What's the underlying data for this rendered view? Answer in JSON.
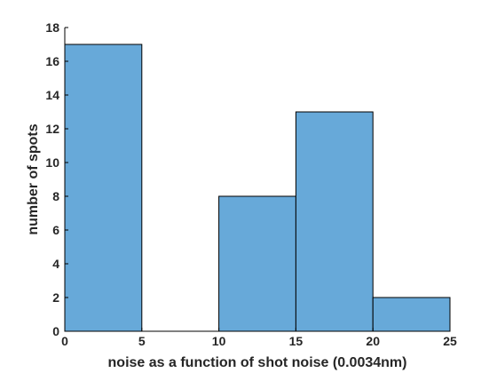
{
  "chart_data": {
    "type": "bar",
    "bin_edges": [
      0,
      5,
      10,
      15,
      20,
      25
    ],
    "values": [
      17,
      0,
      8,
      13,
      2
    ],
    "xlabel": "noise as a function of shot noise (0.0034nm)",
    "ylabel": "number of spots",
    "xlim": [
      0,
      25
    ],
    "ylim": [
      0,
      18
    ],
    "xticks": [
      0,
      5,
      10,
      15,
      20,
      25
    ],
    "yticks": [
      0,
      2,
      4,
      6,
      8,
      10,
      12,
      14,
      16,
      18
    ],
    "grid": false,
    "bar_color": "#67a9d9",
    "edge_color": "#000000"
  }
}
